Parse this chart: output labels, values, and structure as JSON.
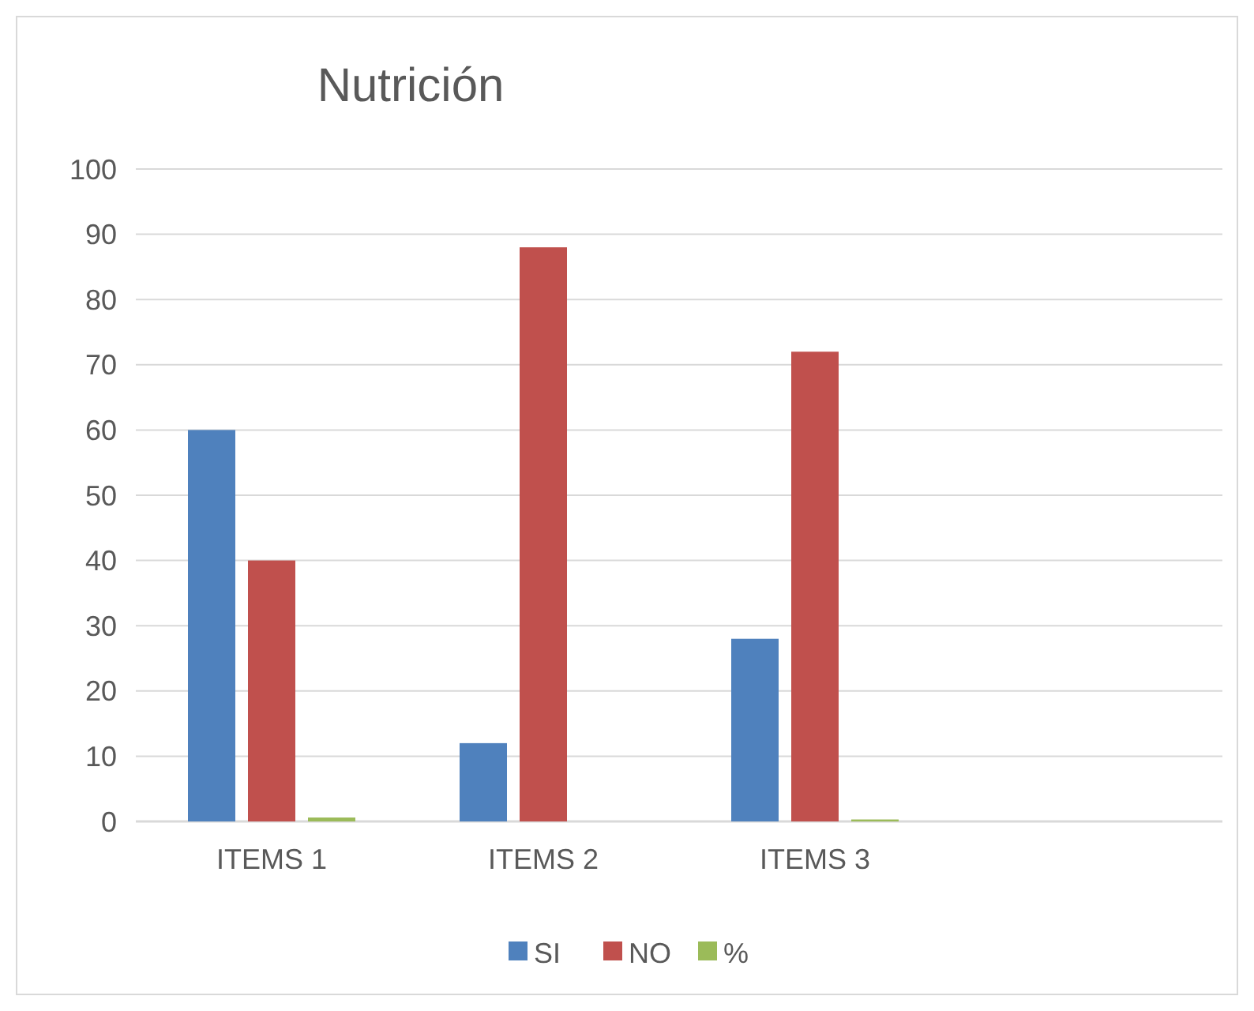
{
  "chart_data": {
    "type": "bar",
    "title": "Nutrición",
    "categories": [
      "ITEMS 1",
      "ITEMS 2",
      "ITEMS 3",
      null
    ],
    "series": [
      {
        "name": "SI",
        "color": "#4f81bd",
        "values": [
          60,
          12,
          28,
          null
        ]
      },
      {
        "name": "NO",
        "color": "#c0504d",
        "values": [
          40,
          88,
          72,
          null
        ]
      },
      {
        "name": "%",
        "color": "#9bbb59",
        "values": [
          0.6,
          0,
          0.3,
          null
        ]
      }
    ],
    "ylim": [
      0,
      100
    ],
    "yticks": [
      0,
      10,
      20,
      30,
      40,
      50,
      60,
      70,
      80,
      90,
      100
    ],
    "grid": "y",
    "legend": "bottom"
  }
}
